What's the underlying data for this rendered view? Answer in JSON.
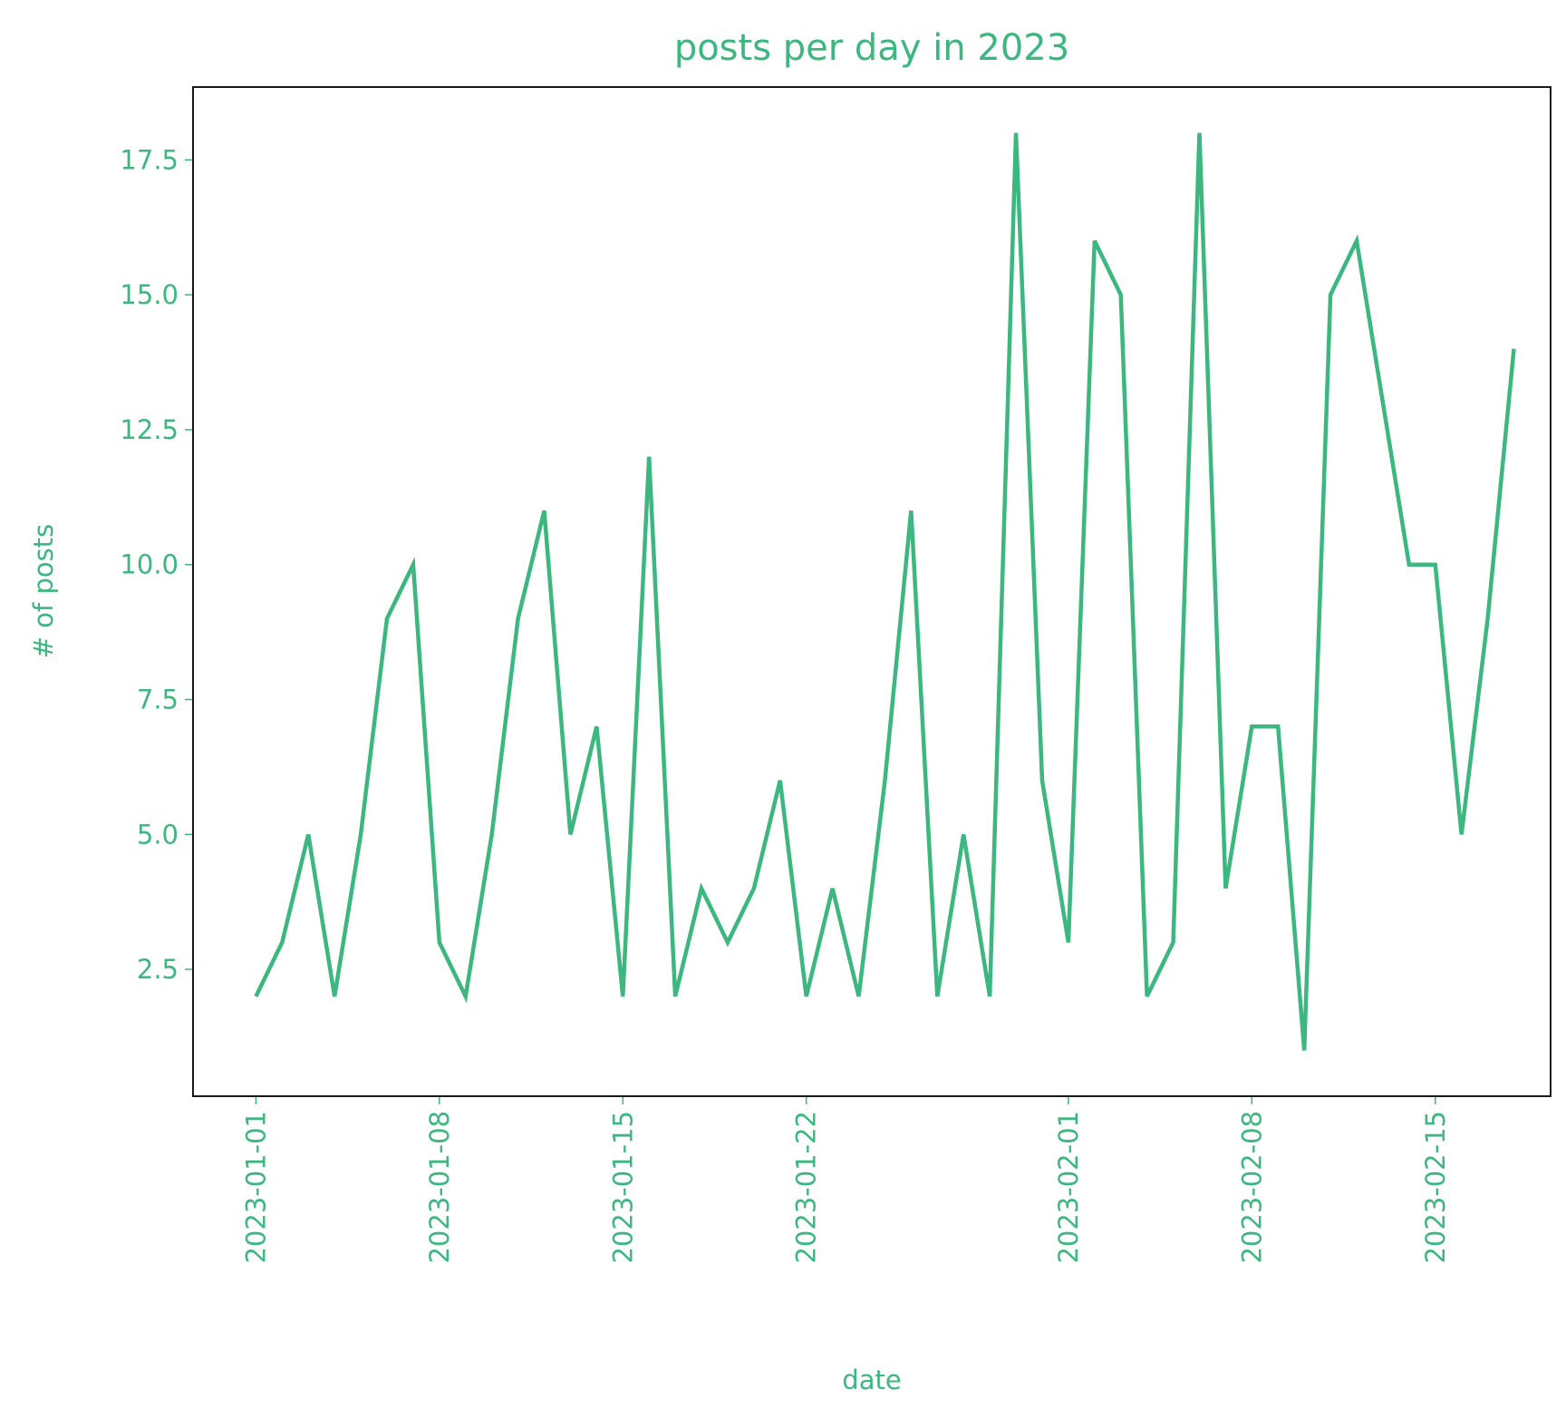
{
  "chart_data": {
    "type": "line",
    "title": "posts per day in 2023",
    "x_label": "date",
    "y_label": "# of posts",
    "x": [
      "2023-01-01",
      "2023-01-02",
      "2023-01-03",
      "2023-01-04",
      "2023-01-05",
      "2023-01-06",
      "2023-01-07",
      "2023-01-08",
      "2023-01-09",
      "2023-01-10",
      "2023-01-11",
      "2023-01-12",
      "2023-01-13",
      "2023-01-14",
      "2023-01-15",
      "2023-01-16",
      "2023-01-17",
      "2023-01-18",
      "2023-01-19",
      "2023-01-20",
      "2023-01-21",
      "2023-01-22",
      "2023-01-23",
      "2023-01-24",
      "2023-01-25",
      "2023-01-26",
      "2023-01-27",
      "2023-01-28",
      "2023-01-29",
      "2023-01-30",
      "2023-01-31",
      "2023-02-01",
      "2023-02-02",
      "2023-02-03",
      "2023-02-04",
      "2023-02-05",
      "2023-02-06",
      "2023-02-07",
      "2023-02-08",
      "2023-02-09",
      "2023-02-10",
      "2023-02-11",
      "2023-02-12",
      "2023-02-13",
      "2023-02-14",
      "2023-02-15",
      "2023-02-16",
      "2023-02-17",
      "2023-02-18"
    ],
    "values": [
      2,
      3,
      5,
      2,
      5,
      9,
      10,
      3,
      2,
      5,
      9,
      11,
      5,
      7,
      2,
      12,
      2,
      4,
      3,
      4,
      6,
      2,
      4,
      2,
      6,
      11,
      2,
      5,
      2,
      18,
      6,
      3,
      16,
      15,
      2,
      3,
      18,
      4,
      7,
      7,
      1,
      15,
      16,
      13,
      10,
      10,
      5,
      9,
      14
    ],
    "color": "#3cb77f",
    "xlim": [
      "2022-12-29T14:24:00Z",
      "2023-02-19T09:36:00Z"
    ],
    "xticks": [
      "2023-01-01",
      "2023-01-08",
      "2023-01-15",
      "2023-01-22",
      "2023-02-01",
      "2023-02-08",
      "2023-02-15"
    ],
    "ylim": [
      0.15,
      18.85
    ],
    "yticks": [
      2.5,
      {
        "value": 5,
        "label": "5.0"
      },
      7.5,
      {
        "value": 10,
        "label": "10.0"
      },
      12.5,
      {
        "value": 15,
        "label": "15.0"
      },
      17.5
    ],
    "grid": false
  }
}
